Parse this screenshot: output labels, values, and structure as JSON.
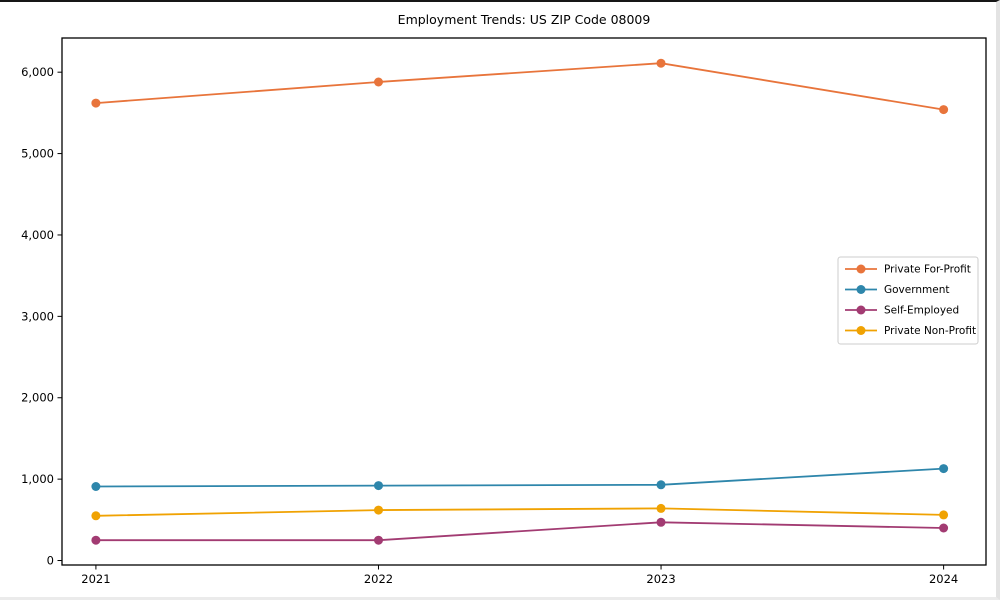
{
  "figure": {
    "background": "#ffffff",
    "spine_color": "#000000"
  },
  "chart_data": {
    "type": "line",
    "title": "Employment Trends: US ZIP Code 08009",
    "xlabel": "",
    "ylabel": "",
    "x": [
      2021,
      2022,
      2023,
      2024
    ],
    "xtick_labels": [
      "2021",
      "2022",
      "2023",
      "2024"
    ],
    "ytick_values": [
      0,
      1000,
      2000,
      3000,
      4000,
      5000,
      6000
    ],
    "ytick_labels": [
      "0",
      "1,000",
      "2,000",
      "3,000",
      "4,000",
      "5,000",
      "6,000"
    ],
    "xlim": [
      2020.88,
      2024.15
    ],
    "ylim": [
      -55,
      6420
    ],
    "grid": false,
    "legend_position": "center-right",
    "series": [
      {
        "name": "Private For-Profit",
        "color": "#E8743B",
        "values": [
          5620,
          5880,
          6110,
          5540
        ]
      },
      {
        "name": "Government",
        "color": "#2E86AB",
        "values": [
          910,
          920,
          930,
          1130
        ]
      },
      {
        "name": "Self-Employed",
        "color": "#A23B72",
        "values": [
          250,
          250,
          470,
          400
        ]
      },
      {
        "name": "Private Non-Profit",
        "color": "#F0A202",
        "values": [
          550,
          620,
          640,
          560
        ]
      }
    ]
  }
}
